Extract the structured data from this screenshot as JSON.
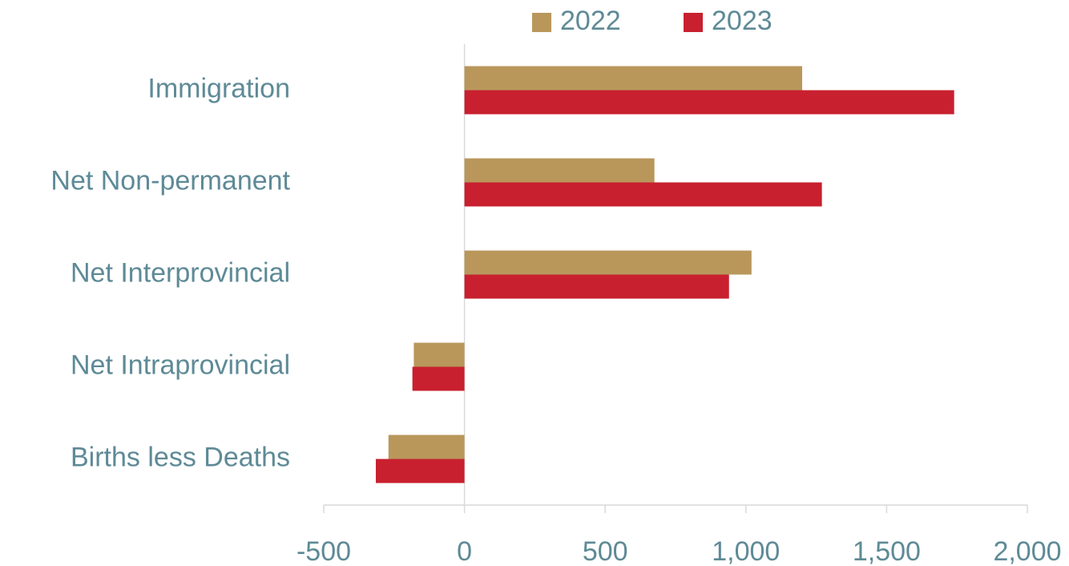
{
  "chart_data": {
    "type": "hbar",
    "categories": [
      "Immigration",
      "Net Non-permanent",
      "Net Interprovincial",
      "Net Intraprovincial",
      "Births less Deaths"
    ],
    "series": [
      {
        "name": "2022",
        "color": "#b9975b",
        "values": [
          1200,
          675,
          1020,
          -180,
          -270
        ]
      },
      {
        "name": "2023",
        "color": "#c8202f",
        "values": [
          1740,
          1270,
          940,
          -185,
          -315
        ]
      }
    ],
    "xlim": [
      -500,
      2000
    ],
    "xticks": [
      -500,
      0,
      500,
      {
        "value": 1000,
        "label": "1,000"
      },
      {
        "value": 1500,
        "label": "1,500"
      },
      {
        "value": 2000,
        "label": "2,000"
      }
    ],
    "legend": "top"
  }
}
